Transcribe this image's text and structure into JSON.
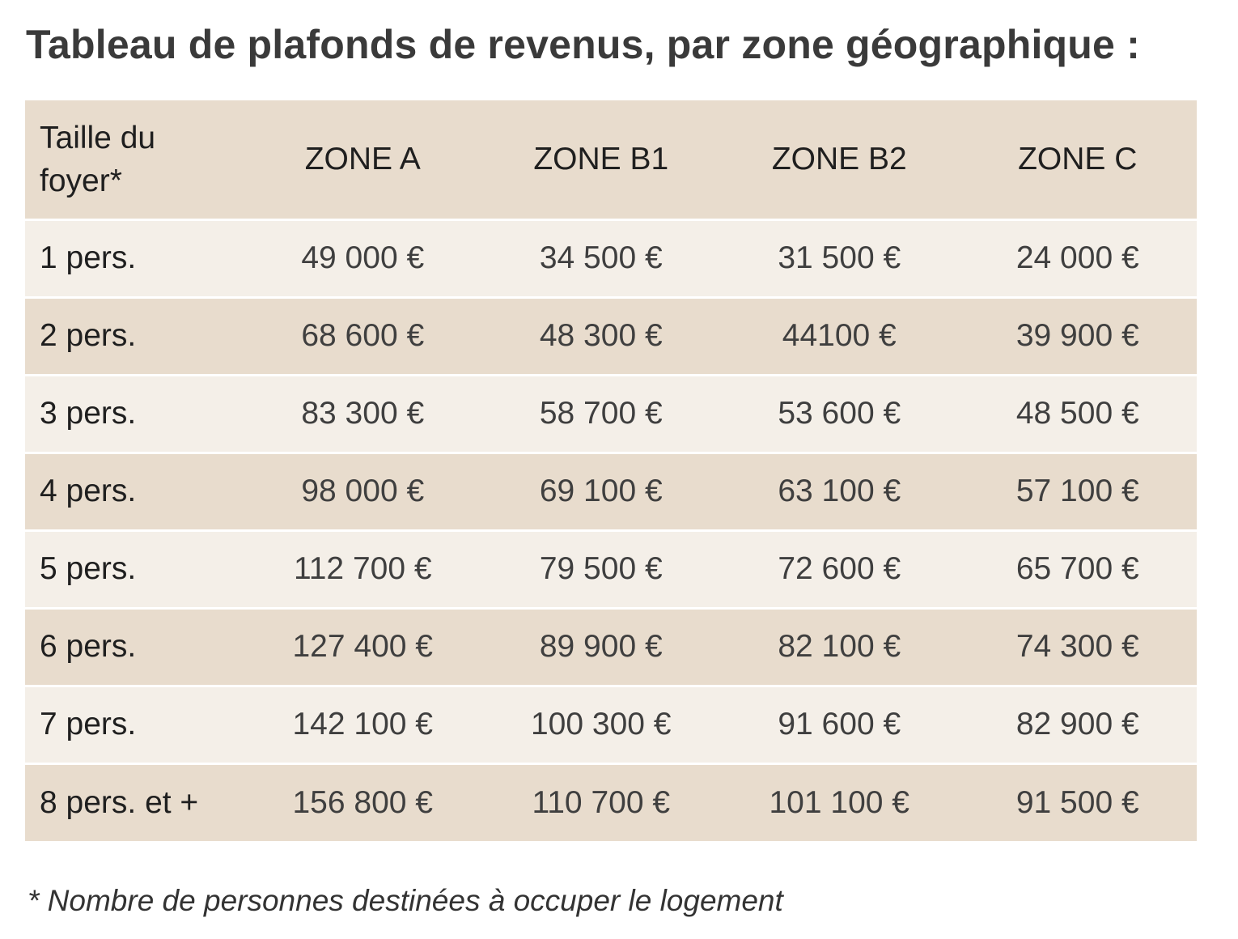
{
  "title": "Tableau de plafonds de revenus, par zone géographique :",
  "table": {
    "header": {
      "size_label": "Taille du foyer*",
      "zones": [
        "ZONE A",
        "ZONE B1",
        "ZONE B2",
        "ZONE C"
      ]
    },
    "rows": [
      {
        "size": "1 pers.",
        "values": [
          "49 000 €",
          "34 500 €",
          "31 500 €",
          "24 000 €"
        ]
      },
      {
        "size": "2 pers.",
        "values": [
          "68 600 €",
          "48 300 €",
          "44100 €",
          "39 900 €"
        ]
      },
      {
        "size": "3 pers.",
        "values": [
          "83 300 €",
          "58 700 €",
          "53 600 €",
          "48 500 €"
        ]
      },
      {
        "size": "4 pers.",
        "values": [
          "98 000 €",
          "69 100 €",
          "63 100 €",
          "57 100 €"
        ]
      },
      {
        "size": "5 pers.",
        "values": [
          "112 700 €",
          "79 500 €",
          "72 600 €",
          "65 700 €"
        ]
      },
      {
        "size": "6 pers.",
        "values": [
          "127 400 €",
          "89 900 €",
          "82 100 €",
          "74 300 €"
        ]
      },
      {
        "size": "7 pers.",
        "values": [
          "142 100 €",
          "100 300 €",
          "91 600 €",
          "82 900 €"
        ]
      },
      {
        "size": "8 pers. et +",
        "values": [
          "156 800 €",
          "110 700 €",
          "101 100 €",
          "91 500 €"
        ]
      }
    ]
  },
  "footnote": "* Nombre de personnes destinées à occuper le logement"
}
